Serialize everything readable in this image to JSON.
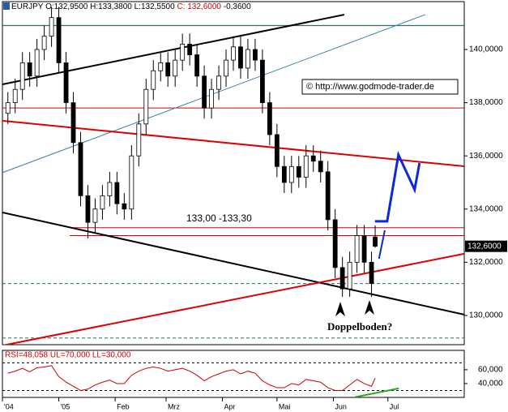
{
  "chart_data": [
    {
      "type": "candlestick",
      "header": {
        "symbol": "EURJPY",
        "open": "O:132,9500",
        "high": "H:133,3800",
        "low": "L:132,5500",
        "close": "C: 132,6000",
        "change": "-0,3600"
      },
      "x": [
        -28,
        -24,
        -20,
        -16,
        -12,
        -8,
        -4,
        0,
        4,
        8,
        12,
        16,
        20,
        24,
        28,
        32,
        36,
        40,
        44,
        48,
        52,
        56,
        60,
        64,
        68,
        72,
        76,
        80,
        84,
        88,
        92,
        96,
        100,
        104,
        108,
        112,
        116,
        120,
        124,
        128,
        132,
        136,
        140,
        144,
        148,
        152,
        156,
        160,
        164,
        168,
        172,
        174
      ],
      "open": [
        137.6,
        138.0,
        138.5,
        139.5,
        139.0,
        140.0,
        140.5,
        141.2,
        139.5,
        138.0,
        136.5,
        134.5,
        133.5,
        134.0,
        134.5,
        135.0,
        134.2,
        134.0,
        136.0,
        137.2,
        138.5,
        139.2,
        139.5,
        139.0,
        139.6,
        140.2,
        139.8,
        139.0,
        137.8,
        138.5,
        139.0,
        139.6,
        140.1,
        139.3,
        140.0,
        139.6,
        138.0,
        136.8,
        135.6,
        135.0,
        135.6,
        135.2,
        136.0,
        135.8,
        135.4,
        133.6,
        131.8,
        131.0,
        132.0,
        133.0,
        132.0,
        132.95
      ],
      "high": [
        138.4,
        138.9,
        139.9,
        139.9,
        140.4,
        140.9,
        141.6,
        141.6,
        139.9,
        138.4,
        136.9,
        134.9,
        134.4,
        134.9,
        135.4,
        135.4,
        134.6,
        136.4,
        137.6,
        138.9,
        139.6,
        139.9,
        139.9,
        140.0,
        140.6,
        140.6,
        140.2,
        139.4,
        138.9,
        139.4,
        140.0,
        140.5,
        140.5,
        140.4,
        140.4,
        140.0,
        138.4,
        137.2,
        136.0,
        136.0,
        136.0,
        136.4,
        136.4,
        136.2,
        135.8,
        134.0,
        132.2,
        132.4,
        133.4,
        133.4,
        132.4,
        133.38
      ],
      "low": [
        137.2,
        137.6,
        138.1,
        138.6,
        138.6,
        139.6,
        140.1,
        139.1,
        137.6,
        136.1,
        134.1,
        132.9,
        133.1,
        133.6,
        134.1,
        133.8,
        133.6,
        133.6,
        135.6,
        136.8,
        138.1,
        138.8,
        138.6,
        138.6,
        139.2,
        139.4,
        138.6,
        137.4,
        137.4,
        138.1,
        138.6,
        139.2,
        138.9,
        138.9,
        139.2,
        137.6,
        136.4,
        135.2,
        134.6,
        134.6,
        134.8,
        134.8,
        135.4,
        135.0,
        133.2,
        131.4,
        130.7,
        130.7,
        131.6,
        131.6,
        130.7,
        132.55
      ],
      "close": [
        138.0,
        138.5,
        139.5,
        139.0,
        140.0,
        140.5,
        141.2,
        139.5,
        138.0,
        136.5,
        134.5,
        133.5,
        134.0,
        134.5,
        135.0,
        134.2,
        134.0,
        136.0,
        137.2,
        138.5,
        139.2,
        139.5,
        139.0,
        139.6,
        140.2,
        139.8,
        139.0,
        137.8,
        138.5,
        139.0,
        139.6,
        140.1,
        139.3,
        140.0,
        139.6,
        138.0,
        136.8,
        135.6,
        135.0,
        135.6,
        135.2,
        136.0,
        135.8,
        135.4,
        133.6,
        131.8,
        131.0,
        132.0,
        133.0,
        132.0,
        131.2,
        132.6
      ],
      "xlim": [
        -31,
        223
      ],
      "xticks": [
        {
          "value": -31,
          "label": "'04"
        },
        {
          "value": 0,
          "label": "'05"
        },
        {
          "value": 31,
          "label": "Feb"
        },
        {
          "value": 59,
          "label": "Mrz"
        },
        {
          "value": 90,
          "label": "Apr"
        },
        {
          "value": 120,
          "label": "Mai"
        },
        {
          "value": 151,
          "label": "Jun"
        },
        {
          "value": 181,
          "label": "Jul"
        }
      ],
      "ylim": [
        128.9,
        141.8
      ],
      "yticks": [
        {
          "value": 130,
          "label": "130,0000"
        },
        {
          "value": 132,
          "label": "132,0000"
        },
        {
          "value": 134,
          "label": "134,0000"
        },
        {
          "value": 136,
          "label": "136,0000"
        },
        {
          "value": 138,
          "label": "138,0000"
        },
        {
          "value": 140,
          "label": "140,0000"
        }
      ],
      "last_price": {
        "value": 132.6,
        "label": "132,6000"
      },
      "trendlines": [
        {
          "color": "#2e6e6e",
          "width": 1.2,
          "x": [
            -31,
            223
          ],
          "y": [
            140.9,
            140.9
          ]
        },
        {
          "color": "#d00000",
          "width": 1,
          "x": [
            -31,
            223
          ],
          "y": [
            137.8,
            137.8
          ]
        },
        {
          "color": "#d00000",
          "width": 1,
          "x": [
            6,
            223
          ],
          "y": [
            133.3,
            133.3
          ]
        },
        {
          "color": "#d00000",
          "width": 1,
          "x": [
            6,
            223
          ],
          "y": [
            133.0,
            133.0
          ]
        },
        {
          "color": "#2e6e6e",
          "width": 1,
          "dash": true,
          "x": [
            -31,
            223
          ],
          "y": [
            131.2,
            131.2
          ]
        },
        {
          "color": "#2e6e6e",
          "width": 1,
          "dash": true,
          "x": [
            -31,
            223
          ],
          "y": [
            129.15,
            129.15
          ]
        },
        {
          "color": "#000000",
          "width": 2,
          "x": [
            -31,
            157
          ],
          "y": [
            138.69,
            141.31
          ]
        },
        {
          "color": "#3a86a8",
          "width": 1,
          "x": [
            -31,
            201.5
          ],
          "y": [
            135.37,
            141.31
          ]
        },
        {
          "color": "#dd0000",
          "width": 2,
          "x": [
            -31,
            223
          ],
          "y": [
            137.32,
            135.61
          ]
        },
        {
          "color": "#000000",
          "width": 2,
          "x": [
            -31,
            223
          ],
          "y": [
            133.87,
            130.03
          ]
        },
        {
          "color": "#dd0000",
          "width": 2,
          "x": [
            -31,
            223
          ],
          "y": [
            128.87,
            132.32
          ]
        },
        {
          "color": "#0a28e0",
          "width": 3,
          "x": [
            173.9,
            180.6,
            186.8,
            195.7,
            198.4
          ],
          "y": [
            133.54,
            133.54,
            136.04,
            134.73,
            135.73
          ]
        },
        {
          "color": "#0a28e0",
          "width": 2,
          "x": [
            176.1,
            179.3
          ],
          "y": [
            132.13,
            133.2
          ]
        }
      ],
      "range_label": "133,00 -133,30",
      "copyright": "© http://www.godmode-trader.de",
      "note": "Doppelboden?"
    },
    {
      "type": "line",
      "header": "RSI=48,058 UL=70,000 LL=30,000",
      "color": "#cc0000",
      "values": [
        55,
        58,
        62,
        57,
        63,
        64,
        66,
        50,
        42,
        36,
        30,
        32,
        38,
        42,
        45,
        40,
        40,
        52,
        58,
        62,
        64,
        62,
        58,
        60,
        62,
        58,
        52,
        44,
        50,
        54,
        58,
        60,
        54,
        58,
        55,
        44,
        38,
        34,
        34,
        40,
        38,
        46,
        44,
        42,
        34,
        30,
        30,
        38,
        46,
        40,
        36,
        48
      ],
      "ylim": [
        20,
        88
      ],
      "yticks": [
        {
          "value": 40,
          "label": "40,000"
        },
        {
          "value": 60,
          "label": "60,000"
        }
      ],
      "ul": 70,
      "ll": 30,
      "trendlines": [
        {
          "color": "#22aa22",
          "width": 2,
          "x": [
            163,
            187
          ],
          "y": [
            20.5,
            33
          ]
        }
      ]
    }
  ]
}
